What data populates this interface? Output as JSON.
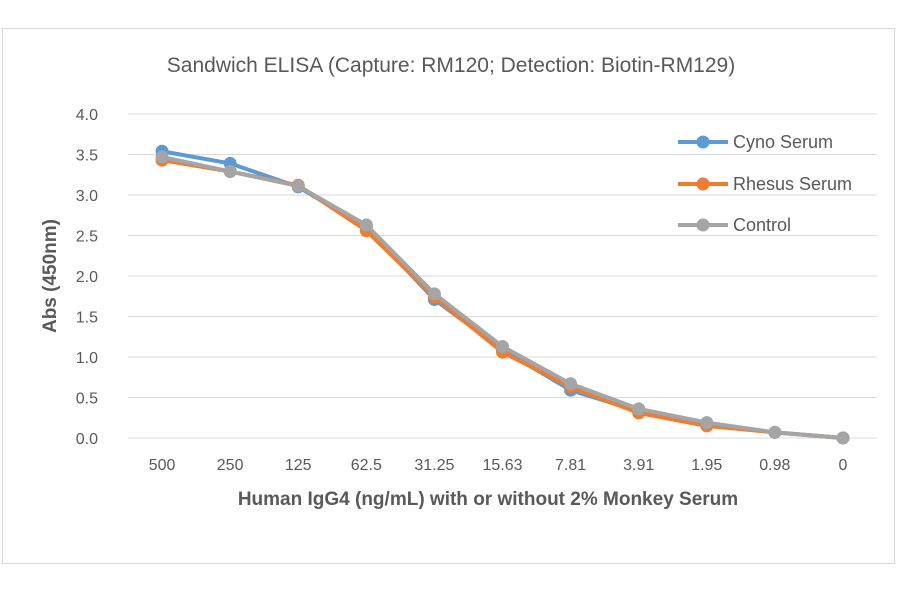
{
  "chart_data": {
    "type": "line",
    "title": "Sandwich ELISA (Capture:  RM120; Detection: Biotin-RM129)",
    "xlabel": "Human IgG4 (ng/mL) with or without 2% Monkey Serum",
    "ylabel": "Abs (450nm)",
    "categories": [
      "500",
      "250",
      "125",
      "62.5",
      "31.25",
      "15.63",
      "7.81",
      "3.91",
      "1.95",
      "0.98",
      "0"
    ],
    "ylim": [
      0,
      4.0
    ],
    "yticks": [
      "0.0",
      "0.5",
      "1.0",
      "1.5",
      "2.0",
      "2.5",
      "3.0",
      "3.5",
      "4.0"
    ],
    "grid": true,
    "legend_position": "top-right",
    "series": [
      {
        "name": "Cyno Serum",
        "color": "#5b9bd5",
        "values": [
          3.54,
          3.39,
          3.1,
          2.6,
          1.71,
          1.09,
          0.59,
          0.33,
          0.16,
          0.07,
          0.0
        ]
      },
      {
        "name": "Rhesus Serum",
        "color": "#ed7d31",
        "values": [
          3.43,
          3.29,
          3.12,
          2.56,
          1.74,
          1.06,
          0.63,
          0.31,
          0.15,
          0.07,
          0.0
        ]
      },
      {
        "name": "Control",
        "color": "#a5a5a5",
        "values": [
          3.47,
          3.29,
          3.11,
          2.63,
          1.78,
          1.13,
          0.67,
          0.36,
          0.19,
          0.07,
          0.0
        ]
      }
    ]
  }
}
